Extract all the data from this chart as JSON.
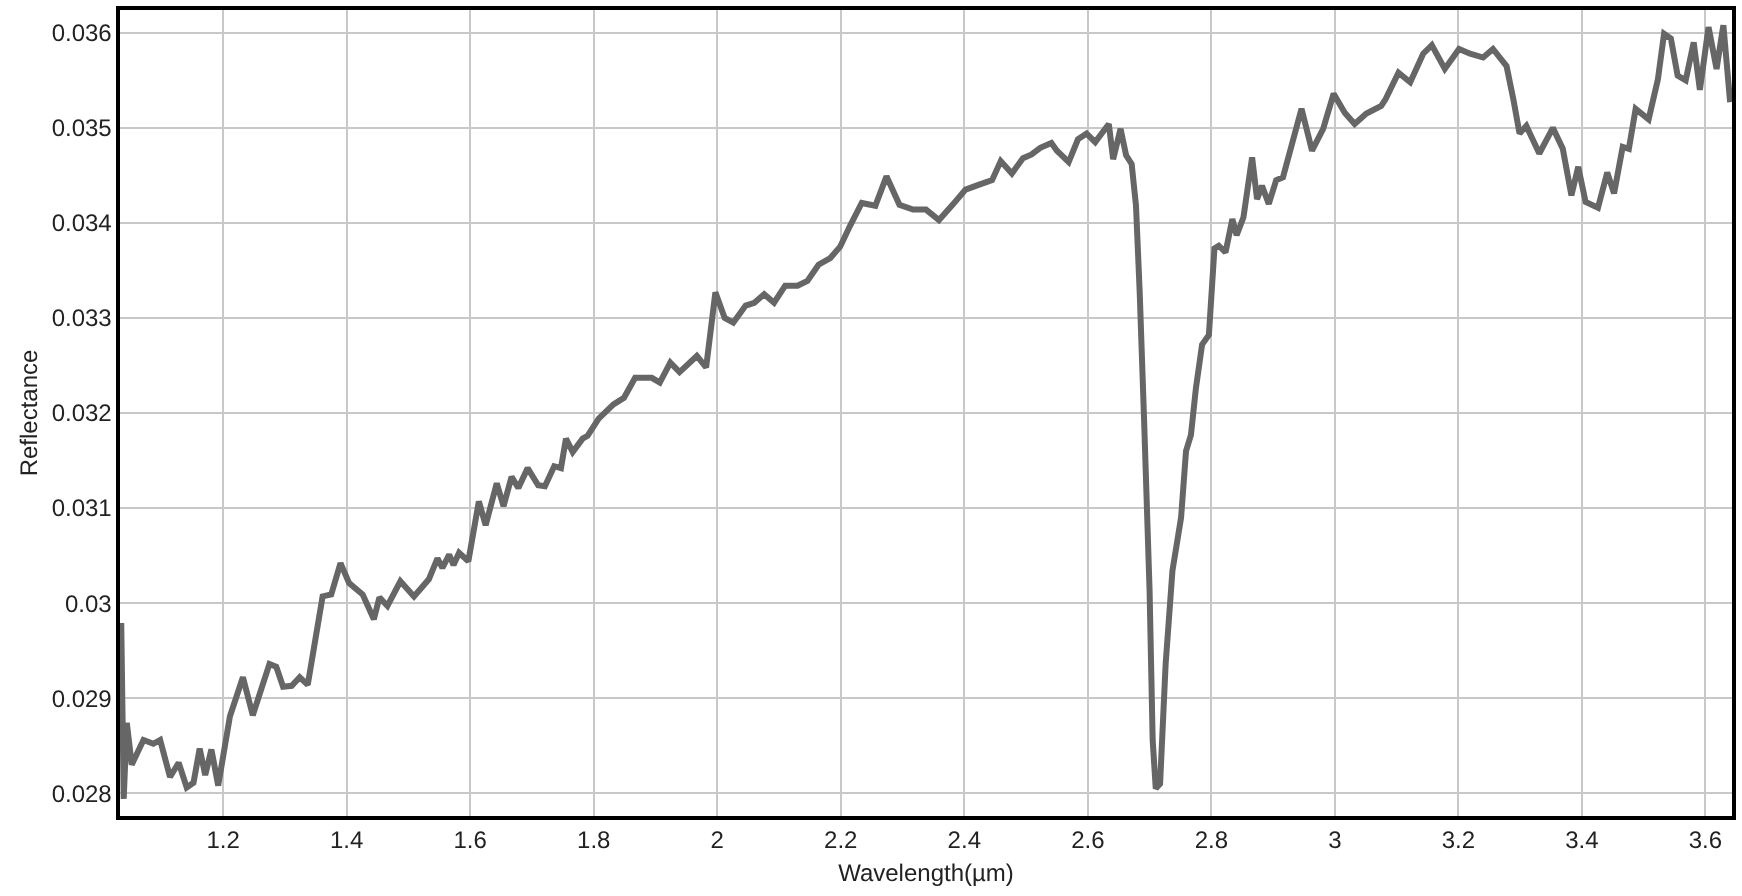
{
  "chart_data": {
    "type": "line",
    "xlabel": "Wavelength(µm)",
    "ylabel": "Reflectance",
    "xlim": [
      1.033,
      3.643
    ],
    "ylim": [
      0.02776,
      0.03624
    ],
    "xticks": [
      1.2,
      1.4,
      1.6,
      1.8,
      2,
      2.2,
      2.4,
      2.6,
      2.8,
      3,
      3.2,
      3.4,
      3.6
    ],
    "yticks": [
      0.028,
      0.029,
      0.03,
      0.031,
      0.032,
      0.033,
      0.034,
      0.035,
      0.036
    ],
    "grid": true,
    "marker": "none",
    "line_style": "solid",
    "series": [
      {
        "color": "#666666",
        "x": [
          1.035,
          1.039,
          1.044,
          1.052,
          1.071,
          1.087,
          1.098,
          1.114,
          1.128,
          1.141,
          1.152,
          1.162,
          1.171,
          1.181,
          1.192,
          1.211,
          1.232,
          1.248,
          1.275,
          1.286,
          1.297,
          1.311,
          1.324,
          1.337,
          1.361,
          1.375,
          1.39,
          1.404,
          1.426,
          1.444,
          1.453,
          1.466,
          1.487,
          1.509,
          1.533,
          1.547,
          1.555,
          1.566,
          1.573,
          1.582,
          1.597,
          1.614,
          1.625,
          1.643,
          1.654,
          1.667,
          1.678,
          1.693,
          1.71,
          1.721,
          1.736,
          1.747,
          1.755,
          1.766,
          1.782,
          1.79,
          1.808,
          1.832,
          1.849,
          1.867,
          1.894,
          1.907,
          1.924,
          1.939,
          1.967,
          1.982,
          1.997,
          2.012,
          2.026,
          2.046,
          2.06,
          2.076,
          2.092,
          2.11,
          2.13,
          2.146,
          2.164,
          2.183,
          2.199,
          2.215,
          2.234,
          2.256,
          2.274,
          2.295,
          2.317,
          2.338,
          2.359,
          2.381,
          2.402,
          2.423,
          2.445,
          2.459,
          2.477,
          2.495,
          2.509,
          2.523,
          2.541,
          2.55,
          2.569,
          2.584,
          2.598,
          2.612,
          2.634,
          2.641,
          2.653,
          2.662,
          2.671,
          2.678,
          2.684,
          2.691,
          2.7,
          2.705,
          2.71,
          2.717,
          2.726,
          2.737,
          2.751,
          2.759,
          2.767,
          2.775,
          2.785,
          2.796,
          2.805,
          2.812,
          2.823,
          2.834,
          2.841,
          2.852,
          2.866,
          2.874,
          2.882,
          2.893,
          2.905,
          2.916,
          2.946,
          2.963,
          2.981,
          2.998,
          3.016,
          3.032,
          3.051,
          3.075,
          3.082,
          3.103,
          3.122,
          3.143,
          3.157,
          3.178,
          3.201,
          3.219,
          3.24,
          3.256,
          3.278,
          3.289,
          3.299,
          3.31,
          3.331,
          3.353,
          3.369,
          3.383,
          3.394,
          3.406,
          3.426,
          3.441,
          3.452,
          3.466,
          3.476,
          3.487,
          3.508,
          3.523,
          3.533,
          3.544,
          3.555,
          3.568,
          3.581,
          3.591,
          3.605,
          3.618,
          3.629,
          3.64
        ],
        "values": [
          0.02979,
          0.02794,
          0.02874,
          0.0283,
          0.02856,
          0.02852,
          0.02856,
          0.02817,
          0.02832,
          0.02806,
          0.02811,
          0.02847,
          0.02819,
          0.02846,
          0.02808,
          0.02881,
          0.02922,
          0.02882,
          0.02936,
          0.02933,
          0.02912,
          0.02913,
          0.02922,
          0.02914,
          0.03007,
          0.03009,
          0.03042,
          0.03021,
          0.03009,
          0.02983,
          0.03006,
          0.02997,
          0.03023,
          0.03007,
          0.03025,
          0.03047,
          0.03037,
          0.03051,
          0.0304,
          0.03053,
          0.03044,
          0.03107,
          0.03082,
          0.03126,
          0.03102,
          0.03133,
          0.03121,
          0.03142,
          0.03124,
          0.03123,
          0.03144,
          0.03142,
          0.03173,
          0.03159,
          0.03173,
          0.03176,
          0.03194,
          0.03209,
          0.03216,
          0.03237,
          0.03237,
          0.03232,
          0.03253,
          0.03243,
          0.0326,
          0.03248,
          0.03327,
          0.033,
          0.03295,
          0.03313,
          0.03316,
          0.03325,
          0.03316,
          0.03334,
          0.03334,
          0.03339,
          0.03356,
          0.03363,
          0.03375,
          0.03397,
          0.03421,
          0.03418,
          0.03449,
          0.03419,
          0.03414,
          0.03414,
          0.03403,
          0.03419,
          0.03435,
          0.0344,
          0.03445,
          0.03465,
          0.03452,
          0.03468,
          0.03472,
          0.03479,
          0.03484,
          0.03476,
          0.03464,
          0.03488,
          0.03494,
          0.03485,
          0.03504,
          0.03467,
          0.03499,
          0.03471,
          0.03462,
          0.03418,
          0.03327,
          0.03195,
          0.03013,
          0.02856,
          0.02805,
          0.0281,
          0.02936,
          0.03034,
          0.0309,
          0.0316,
          0.03177,
          0.03226,
          0.03272,
          0.03282,
          0.03373,
          0.03376,
          0.03369,
          0.03404,
          0.03387,
          0.03406,
          0.03469,
          0.03425,
          0.03439,
          0.0342,
          0.03445,
          0.03448,
          0.0352,
          0.03476,
          0.03499,
          0.03536,
          0.03516,
          0.03504,
          0.03515,
          0.03523,
          0.0353,
          0.03558,
          0.03548,
          0.03578,
          0.03587,
          0.03562,
          0.03583,
          0.03578,
          0.03574,
          0.03583,
          0.03565,
          0.0353,
          0.03494,
          0.03502,
          0.03473,
          0.035,
          0.03478,
          0.03429,
          0.03459,
          0.03422,
          0.03416,
          0.03453,
          0.03431,
          0.0348,
          0.03478,
          0.0352,
          0.03509,
          0.03551,
          0.03599,
          0.03594,
          0.03555,
          0.0355,
          0.0359,
          0.0354,
          0.03606,
          0.03562,
          0.03608,
          0.03527
        ]
      }
    ]
  }
}
